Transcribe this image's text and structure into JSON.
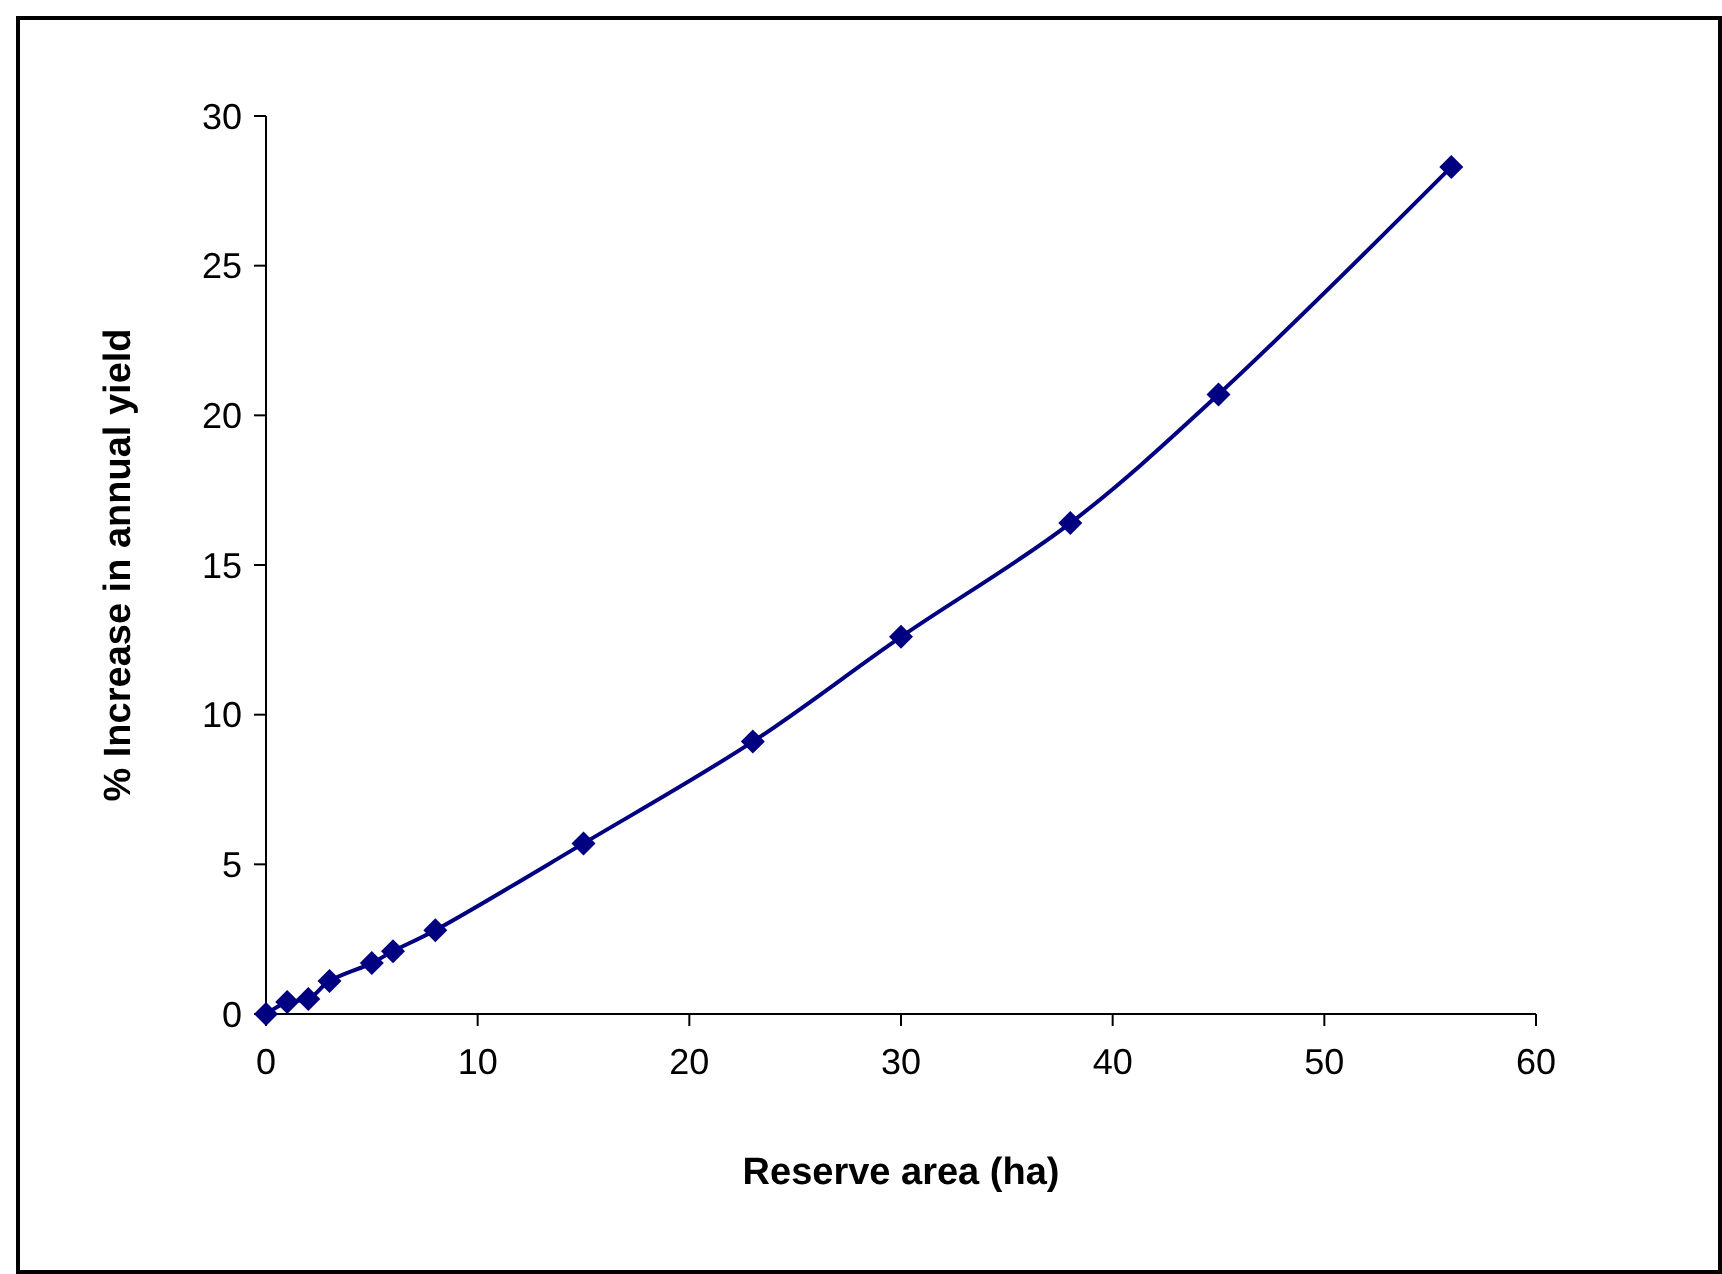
{
  "chart_data": {
    "type": "line",
    "xlabel": "Reserve area (ha)",
    "ylabel": "% Increase in annual yield",
    "x": [
      0,
      1,
      2,
      3,
      5,
      6,
      8,
      15,
      23,
      30,
      38,
      45,
      56
    ],
    "series": [
      {
        "color": "#000080",
        "values": [
          0,
          0.4,
          0.5,
          1.1,
          1.7,
          2.1,
          2.8,
          5.7,
          9.1,
          12.6,
          16.4,
          20.7,
          28.3
        ]
      }
    ],
    "xlim": [
      0,
      60
    ],
    "xticks": [
      0,
      10,
      20,
      30,
      40,
      50,
      60
    ],
    "ylim": [
      0,
      30
    ],
    "yticks": [
      0,
      5,
      10,
      15,
      20,
      25,
      30
    ],
    "marker": "diamond",
    "line_style": "solid"
  }
}
